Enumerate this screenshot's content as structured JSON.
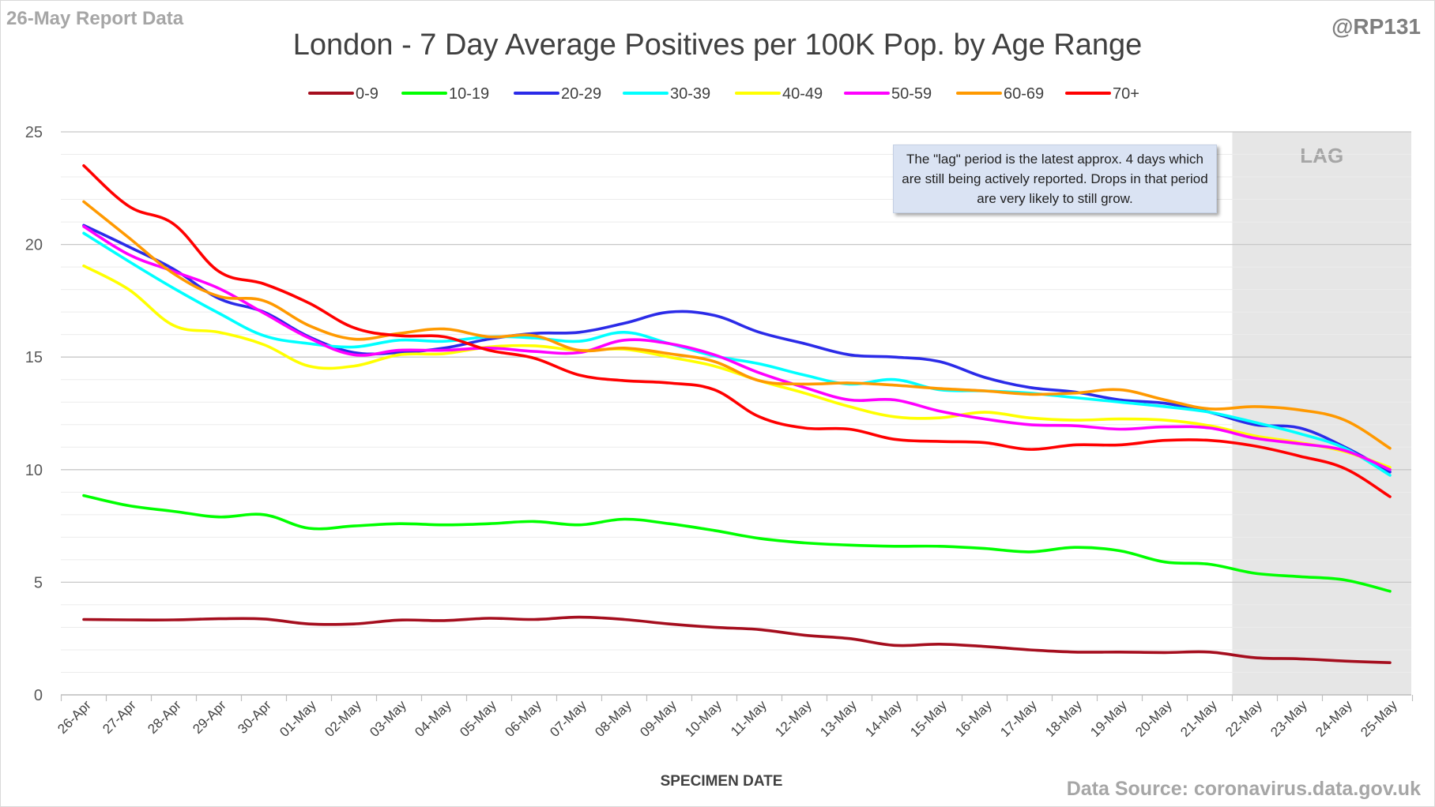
{
  "report_label": "26-May Report Data",
  "handle": "@RP131",
  "source": "Data Source: coronavirus.data.gov.uk",
  "annotation": "The \"lag\" period is the latest approx. 4 days which are still being actively reported. Drops in that period are very likely to still grow.",
  "lag_label": "LAG",
  "chart_data": {
    "type": "line",
    "title": "London - 7 Day Average Positives per 100K Pop. by Age Range",
    "xlabel": "SPECIMEN DATE",
    "ylabel": "",
    "ylim": [
      0,
      25
    ],
    "yticks": [
      0,
      5,
      10,
      15,
      20,
      25
    ],
    "grid": true,
    "legend_position": "top",
    "lag_region": {
      "from": "21-May",
      "to": "25-May",
      "color": "#e6e6e6"
    },
    "categories": [
      "26-Apr",
      "27-Apr",
      "28-Apr",
      "29-Apr",
      "30-Apr",
      "01-May",
      "02-May",
      "03-May",
      "04-May",
      "05-May",
      "06-May",
      "07-May",
      "08-May",
      "09-May",
      "10-May",
      "11-May",
      "12-May",
      "13-May",
      "14-May",
      "15-May",
      "16-May",
      "17-May",
      "18-May",
      "19-May",
      "20-May",
      "21-May",
      "22-May",
      "23-May",
      "24-May",
      "25-May"
    ],
    "series": [
      {
        "name": "0-9",
        "color": "#a50e1e",
        "values": [
          3.35,
          3.33,
          3.33,
          3.38,
          3.37,
          3.15,
          3.15,
          3.32,
          3.3,
          3.4,
          3.35,
          3.45,
          3.35,
          3.15,
          3.0,
          2.9,
          2.65,
          2.5,
          2.2,
          2.25,
          2.15,
          2.0,
          1.9,
          1.9,
          1.88,
          1.9,
          1.65,
          1.6,
          1.5,
          1.43
        ]
      },
      {
        "name": "10-19",
        "color": "#00ff00",
        "values": [
          8.85,
          8.4,
          8.15,
          7.9,
          8.0,
          7.4,
          7.5,
          7.6,
          7.55,
          7.6,
          7.7,
          7.55,
          7.8,
          7.6,
          7.3,
          6.95,
          6.75,
          6.65,
          6.6,
          6.6,
          6.5,
          6.35,
          6.55,
          6.4,
          5.9,
          5.8,
          5.4,
          5.25,
          5.1,
          4.6
        ]
      },
      {
        "name": "20-29",
        "color": "#2b2be8",
        "values": [
          20.85,
          19.9,
          18.9,
          17.6,
          17.0,
          15.9,
          15.2,
          15.2,
          15.4,
          15.8,
          16.05,
          16.1,
          16.5,
          17.0,
          16.85,
          16.1,
          15.6,
          15.1,
          15.0,
          14.8,
          14.1,
          13.65,
          13.45,
          13.1,
          12.95,
          12.55,
          12.0,
          11.85,
          11.0,
          9.9
        ]
      },
      {
        "name": "30-39",
        "color": "#00ffff",
        "values": [
          20.5,
          19.25,
          18.05,
          16.95,
          15.95,
          15.6,
          15.45,
          15.75,
          15.7,
          15.9,
          15.85,
          15.7,
          16.1,
          15.6,
          15.05,
          14.7,
          14.2,
          13.8,
          14.0,
          13.55,
          13.5,
          13.4,
          13.2,
          13.0,
          12.8,
          12.55,
          12.1,
          11.6,
          10.95,
          9.75
        ]
      },
      {
        "name": "40-49",
        "color": "#ffff00",
        "values": [
          19.05,
          18.0,
          16.4,
          16.1,
          15.55,
          14.6,
          14.6,
          15.1,
          15.15,
          15.45,
          15.5,
          15.3,
          15.35,
          15.0,
          14.6,
          13.95,
          13.4,
          12.8,
          12.35,
          12.3,
          12.55,
          12.3,
          12.2,
          12.25,
          12.2,
          11.95,
          11.5,
          11.2,
          10.8,
          10.1
        ]
      },
      {
        "name": "50-59",
        "color": "#ff00ff",
        "values": [
          20.8,
          19.55,
          18.8,
          18.05,
          16.95,
          15.85,
          15.1,
          15.3,
          15.3,
          15.4,
          15.25,
          15.2,
          15.75,
          15.6,
          15.1,
          14.3,
          13.65,
          13.1,
          13.1,
          12.6,
          12.25,
          12.0,
          11.95,
          11.8,
          11.9,
          11.85,
          11.4,
          11.15,
          10.85,
          10.0
        ]
      },
      {
        "name": "60-69",
        "color": "#ff9900",
        "values": [
          21.9,
          20.3,
          18.7,
          17.7,
          17.5,
          16.4,
          15.8,
          16.05,
          16.25,
          15.9,
          15.95,
          15.3,
          15.4,
          15.15,
          14.8,
          13.95,
          13.8,
          13.85,
          13.75,
          13.6,
          13.5,
          13.35,
          13.4,
          13.55,
          13.1,
          12.7,
          12.8,
          12.65,
          12.2,
          10.95
        ]
      },
      {
        "name": "70+",
        "color": "#ff0000",
        "values": [
          23.5,
          21.7,
          20.9,
          18.8,
          18.25,
          17.4,
          16.3,
          15.95,
          15.9,
          15.3,
          14.95,
          14.2,
          13.95,
          13.85,
          13.55,
          12.35,
          11.85,
          11.8,
          11.35,
          11.25,
          11.2,
          10.9,
          11.1,
          11.1,
          11.3,
          11.3,
          11.05,
          10.6,
          10.05,
          8.8
        ]
      }
    ]
  }
}
